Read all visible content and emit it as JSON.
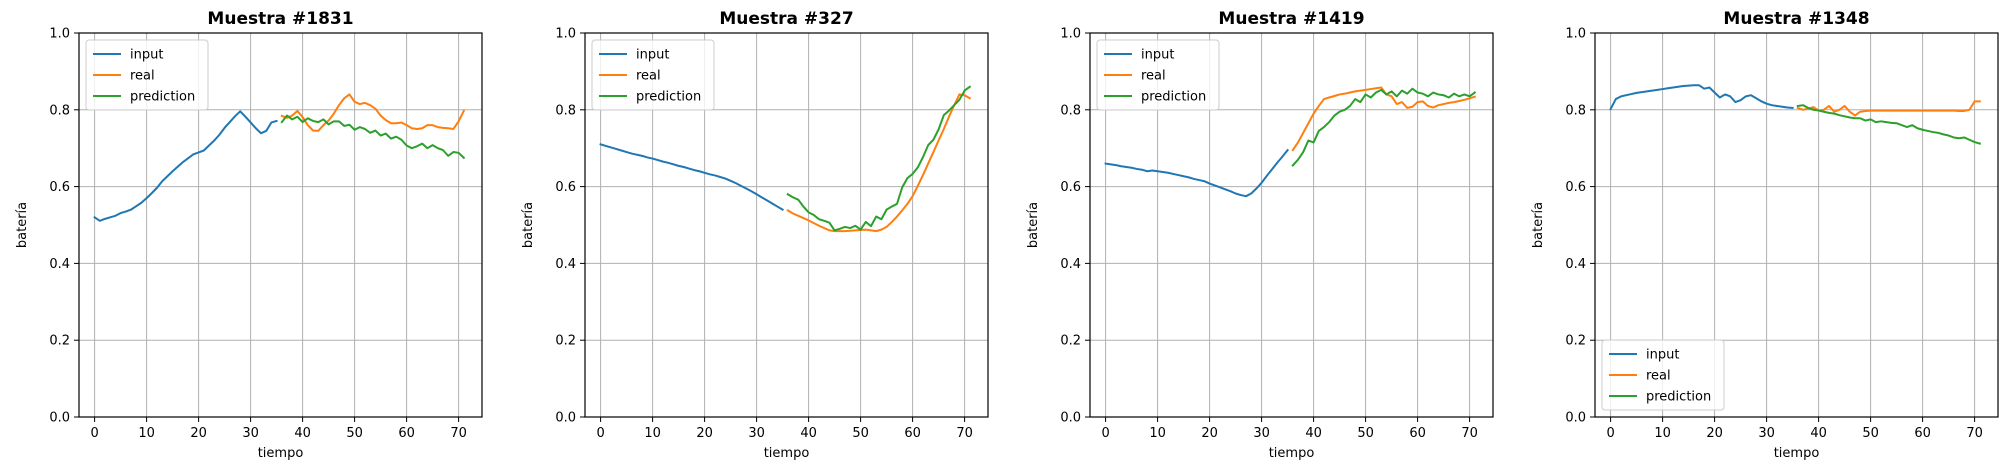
{
  "figure": {
    "background": "#ffffff"
  },
  "colors": {
    "input": "#1f77b4",
    "real": "#ff7f0e",
    "prediction": "#2ca02c",
    "grid": "#b0b0b0"
  },
  "chart_data": [
    {
      "type": "line",
      "title": "Muestra #1831",
      "xlabel": "tiempo",
      "ylabel": "batería",
      "xlim": [
        -3,
        74.5
      ],
      "ylim": [
        0,
        1
      ],
      "xticks": [
        0,
        10,
        20,
        30,
        40,
        50,
        60,
        70
      ],
      "yticks": [
        0.0,
        0.2,
        0.4,
        0.6,
        0.8,
        1.0
      ],
      "grid": true,
      "legend": "upper left",
      "series": [
        {
          "name": "input",
          "color": "#1f77b4",
          "x": [
            0,
            1,
            2,
            3,
            4,
            5,
            6,
            7,
            8,
            9,
            10,
            11,
            12,
            13,
            14,
            15,
            16,
            17,
            18,
            19,
            20,
            21,
            22,
            23,
            24,
            25,
            26,
            27,
            28,
            29,
            30,
            31,
            32,
            33,
            34,
            35
          ],
          "y": [
            0.52,
            0.511,
            0.516,
            0.52,
            0.524,
            0.531,
            0.535,
            0.54,
            0.549,
            0.558,
            0.57,
            0.583,
            0.597,
            0.614,
            0.627,
            0.64,
            0.652,
            0.664,
            0.674,
            0.684,
            0.689,
            0.694,
            0.707,
            0.72,
            0.735,
            0.753,
            0.768,
            0.783,
            0.796,
            0.782,
            0.767,
            0.752,
            0.739,
            0.745,
            0.767,
            0.771
          ]
        },
        {
          "name": "real",
          "color": "#ff7f0e",
          "x": [
            36,
            37,
            38,
            39,
            40,
            41,
            42,
            43,
            44,
            45,
            46,
            47,
            48,
            49,
            50,
            51,
            52,
            53,
            54,
            55,
            56,
            57,
            58,
            59,
            60,
            61,
            62,
            63,
            64,
            65,
            66,
            67,
            68,
            69,
            70,
            71
          ],
          "y": [
            0.784,
            0.779,
            0.785,
            0.797,
            0.781,
            0.76,
            0.746,
            0.745,
            0.76,
            0.772,
            0.79,
            0.812,
            0.83,
            0.84,
            0.821,
            0.815,
            0.818,
            0.812,
            0.803,
            0.785,
            0.773,
            0.765,
            0.765,
            0.767,
            0.76,
            0.752,
            0.75,
            0.752,
            0.76,
            0.76,
            0.755,
            0.753,
            0.752,
            0.75,
            0.77,
            0.797
          ]
        },
        {
          "name": "prediction",
          "color": "#2ca02c",
          "x": [
            36,
            37,
            38,
            39,
            40,
            41,
            42,
            43,
            44,
            45,
            46,
            47,
            48,
            49,
            50,
            51,
            52,
            53,
            54,
            55,
            56,
            57,
            58,
            59,
            60,
            61,
            62,
            63,
            64,
            65,
            66,
            67,
            68,
            69,
            70,
            71
          ],
          "y": [
            0.768,
            0.785,
            0.775,
            0.782,
            0.768,
            0.778,
            0.771,
            0.768,
            0.775,
            0.762,
            0.77,
            0.77,
            0.758,
            0.761,
            0.748,
            0.755,
            0.75,
            0.74,
            0.746,
            0.733,
            0.738,
            0.725,
            0.73,
            0.722,
            0.707,
            0.7,
            0.705,
            0.712,
            0.7,
            0.708,
            0.7,
            0.695,
            0.68,
            0.69,
            0.688,
            0.675
          ]
        }
      ]
    },
    {
      "type": "line",
      "title": "Muestra #327",
      "xlabel": "tiempo",
      "ylabel": "batería",
      "xlim": [
        -3,
        74.5
      ],
      "ylim": [
        0,
        1
      ],
      "xticks": [
        0,
        10,
        20,
        30,
        40,
        50,
        60,
        70
      ],
      "yticks": [
        0.0,
        0.2,
        0.4,
        0.6,
        0.8,
        1.0
      ],
      "grid": true,
      "legend": "upper left",
      "series": [
        {
          "name": "input",
          "color": "#1f77b4",
          "x": [
            0,
            1,
            2,
            3,
            4,
            5,
            6,
            7,
            8,
            9,
            10,
            11,
            12,
            13,
            14,
            15,
            16,
            17,
            18,
            19,
            20,
            21,
            22,
            23,
            24,
            25,
            26,
            27,
            28,
            29,
            30,
            31,
            32,
            33,
            34,
            35
          ],
          "y": [
            0.71,
            0.706,
            0.702,
            0.698,
            0.694,
            0.69,
            0.686,
            0.683,
            0.68,
            0.676,
            0.673,
            0.669,
            0.665,
            0.662,
            0.658,
            0.654,
            0.651,
            0.647,
            0.643,
            0.64,
            0.636,
            0.632,
            0.629,
            0.625,
            0.621,
            0.615,
            0.609,
            0.602,
            0.595,
            0.588,
            0.58,
            0.572,
            0.564,
            0.556,
            0.548,
            0.54
          ]
        },
        {
          "name": "real",
          "color": "#ff7f0e",
          "x": [
            36,
            37,
            38,
            39,
            40,
            41,
            42,
            43,
            44,
            45,
            46,
            47,
            48,
            49,
            50,
            51,
            52,
            53,
            54,
            55,
            56,
            57,
            58,
            59,
            60,
            61,
            62,
            63,
            64,
            65,
            66,
            67,
            68,
            69,
            70,
            71
          ],
          "y": [
            0.538,
            0.53,
            0.524,
            0.518,
            0.512,
            0.505,
            0.498,
            0.492,
            0.486,
            0.484,
            0.484,
            0.484,
            0.485,
            0.486,
            0.487,
            0.488,
            0.486,
            0.484,
            0.488,
            0.495,
            0.508,
            0.522,
            0.538,
            0.555,
            0.575,
            0.602,
            0.63,
            0.66,
            0.69,
            0.72,
            0.75,
            0.782,
            0.812,
            0.84,
            0.838,
            0.83
          ]
        },
        {
          "name": "prediction",
          "color": "#2ca02c",
          "x": [
            36,
            37,
            38,
            39,
            40,
            41,
            42,
            43,
            44,
            45,
            46,
            47,
            48,
            49,
            50,
            51,
            52,
            53,
            54,
            55,
            56,
            57,
            58,
            59,
            60,
            61,
            62,
            63,
            64,
            65,
            66,
            67,
            68,
            69,
            70,
            71
          ],
          "y": [
            0.58,
            0.572,
            0.566,
            0.548,
            0.533,
            0.526,
            0.515,
            0.511,
            0.506,
            0.486,
            0.49,
            0.495,
            0.492,
            0.498,
            0.488,
            0.508,
            0.497,
            0.522,
            0.515,
            0.54,
            0.548,
            0.555,
            0.598,
            0.622,
            0.633,
            0.65,
            0.677,
            0.708,
            0.722,
            0.749,
            0.786,
            0.798,
            0.812,
            0.826,
            0.85,
            0.86
          ]
        }
      ]
    },
    {
      "type": "line",
      "title": "Muestra #1419",
      "xlabel": "tiempo",
      "ylabel": "batería",
      "xlim": [
        -3,
        74.5
      ],
      "ylim": [
        0,
        1
      ],
      "xticks": [
        0,
        10,
        20,
        30,
        40,
        50,
        60,
        70
      ],
      "yticks": [
        0.0,
        0.2,
        0.4,
        0.6,
        0.8,
        1.0
      ],
      "grid": true,
      "legend": "upper left",
      "series": [
        {
          "name": "input",
          "color": "#1f77b4",
          "x": [
            0,
            1,
            2,
            3,
            4,
            5,
            6,
            7,
            8,
            9,
            10,
            11,
            12,
            13,
            14,
            15,
            16,
            17,
            18,
            19,
            20,
            21,
            22,
            23,
            24,
            25,
            26,
            27,
            28,
            29,
            30,
            31,
            32,
            33,
            34,
            35
          ],
          "y": [
            0.66,
            0.658,
            0.656,
            0.653,
            0.651,
            0.649,
            0.646,
            0.644,
            0.64,
            0.642,
            0.64,
            0.638,
            0.636,
            0.633,
            0.63,
            0.627,
            0.624,
            0.62,
            0.617,
            0.614,
            0.608,
            0.603,
            0.598,
            0.593,
            0.588,
            0.582,
            0.578,
            0.575,
            0.582,
            0.595,
            0.61,
            0.628,
            0.645,
            0.662,
            0.678,
            0.695
          ]
        },
        {
          "name": "real",
          "color": "#ff7f0e",
          "x": [
            36,
            37,
            38,
            39,
            40,
            41,
            42,
            43,
            44,
            45,
            46,
            47,
            48,
            49,
            50,
            51,
            52,
            53,
            54,
            55,
            56,
            57,
            58,
            59,
            60,
            61,
            62,
            63,
            64,
            65,
            66,
            67,
            68,
            69,
            70,
            71
          ],
          "y": [
            0.695,
            0.715,
            0.74,
            0.765,
            0.79,
            0.81,
            0.828,
            0.832,
            0.836,
            0.84,
            0.842,
            0.845,
            0.848,
            0.85,
            0.852,
            0.854,
            0.856,
            0.858,
            0.84,
            0.835,
            0.815,
            0.82,
            0.805,
            0.808,
            0.82,
            0.822,
            0.81,
            0.806,
            0.812,
            0.815,
            0.818,
            0.82,
            0.823,
            0.826,
            0.83,
            0.834
          ]
        },
        {
          "name": "prediction",
          "color": "#2ca02c",
          "x": [
            36,
            37,
            38,
            39,
            40,
            41,
            42,
            43,
            44,
            45,
            46,
            47,
            48,
            49,
            50,
            51,
            52,
            53,
            54,
            55,
            56,
            57,
            58,
            59,
            60,
            61,
            62,
            63,
            64,
            65,
            66,
            67,
            68,
            69,
            70,
            71
          ],
          "y": [
            0.655,
            0.67,
            0.69,
            0.72,
            0.715,
            0.745,
            0.755,
            0.768,
            0.785,
            0.795,
            0.8,
            0.81,
            0.828,
            0.82,
            0.84,
            0.832,
            0.845,
            0.852,
            0.84,
            0.848,
            0.835,
            0.85,
            0.842,
            0.855,
            0.845,
            0.842,
            0.835,
            0.845,
            0.84,
            0.838,
            0.832,
            0.842,
            0.835,
            0.84,
            0.835,
            0.845
          ]
        }
      ]
    },
    {
      "type": "line",
      "title": "Muestra #1348",
      "xlabel": "tiempo",
      "ylabel": "batería",
      "xlim": [
        -3,
        74.5
      ],
      "ylim": [
        0,
        1
      ],
      "xticks": [
        0,
        10,
        20,
        30,
        40,
        50,
        60,
        70
      ],
      "yticks": [
        0.0,
        0.2,
        0.4,
        0.6,
        0.8,
        1.0
      ],
      "grid": true,
      "legend": "lower left",
      "series": [
        {
          "name": "input",
          "color": "#1f77b4",
          "x": [
            0,
            1,
            2,
            3,
            4,
            5,
            6,
            7,
            8,
            9,
            10,
            11,
            12,
            13,
            14,
            15,
            16,
            17,
            18,
            19,
            20,
            21,
            22,
            23,
            24,
            25,
            26,
            27,
            28,
            29,
            30,
            31,
            32,
            33,
            34,
            35
          ],
          "y": [
            0.802,
            0.828,
            0.835,
            0.838,
            0.841,
            0.844,
            0.846,
            0.848,
            0.85,
            0.852,
            0.854,
            0.856,
            0.858,
            0.86,
            0.862,
            0.863,
            0.864,
            0.864,
            0.855,
            0.858,
            0.845,
            0.832,
            0.84,
            0.835,
            0.82,
            0.825,
            0.835,
            0.838,
            0.83,
            0.822,
            0.816,
            0.812,
            0.81,
            0.808,
            0.806,
            0.805
          ]
        },
        {
          "name": "real",
          "color": "#ff7f0e",
          "x": [
            36,
            37,
            38,
            39,
            40,
            41,
            42,
            43,
            44,
            45,
            46,
            47,
            48,
            49,
            50,
            51,
            52,
            53,
            54,
            55,
            56,
            57,
            58,
            59,
            60,
            61,
            62,
            63,
            64,
            65,
            66,
            67,
            68,
            69,
            70,
            71
          ],
          "y": [
            0.805,
            0.8,
            0.803,
            0.807,
            0.798,
            0.8,
            0.81,
            0.795,
            0.8,
            0.81,
            0.795,
            0.785,
            0.795,
            0.797,
            0.798,
            0.798,
            0.798,
            0.798,
            0.798,
            0.798,
            0.798,
            0.798,
            0.798,
            0.798,
            0.798,
            0.798,
            0.798,
            0.798,
            0.798,
            0.798,
            0.798,
            0.797,
            0.797,
            0.8,
            0.822,
            0.822
          ]
        },
        {
          "name": "prediction",
          "color": "#2ca02c",
          "x": [
            36,
            37,
            38,
            39,
            40,
            41,
            42,
            43,
            44,
            45,
            46,
            47,
            48,
            49,
            50,
            51,
            52,
            53,
            54,
            55,
            56,
            57,
            58,
            59,
            60,
            61,
            62,
            63,
            64,
            65,
            66,
            67,
            68,
            69,
            70,
            71
          ],
          "y": [
            0.81,
            0.812,
            0.805,
            0.8,
            0.798,
            0.795,
            0.792,
            0.79,
            0.786,
            0.783,
            0.78,
            0.778,
            0.778,
            0.772,
            0.775,
            0.768,
            0.77,
            0.768,
            0.766,
            0.765,
            0.76,
            0.755,
            0.76,
            0.752,
            0.748,
            0.745,
            0.742,
            0.74,
            0.736,
            0.733,
            0.728,
            0.726,
            0.728,
            0.722,
            0.716,
            0.712
          ]
        }
      ]
    }
  ]
}
